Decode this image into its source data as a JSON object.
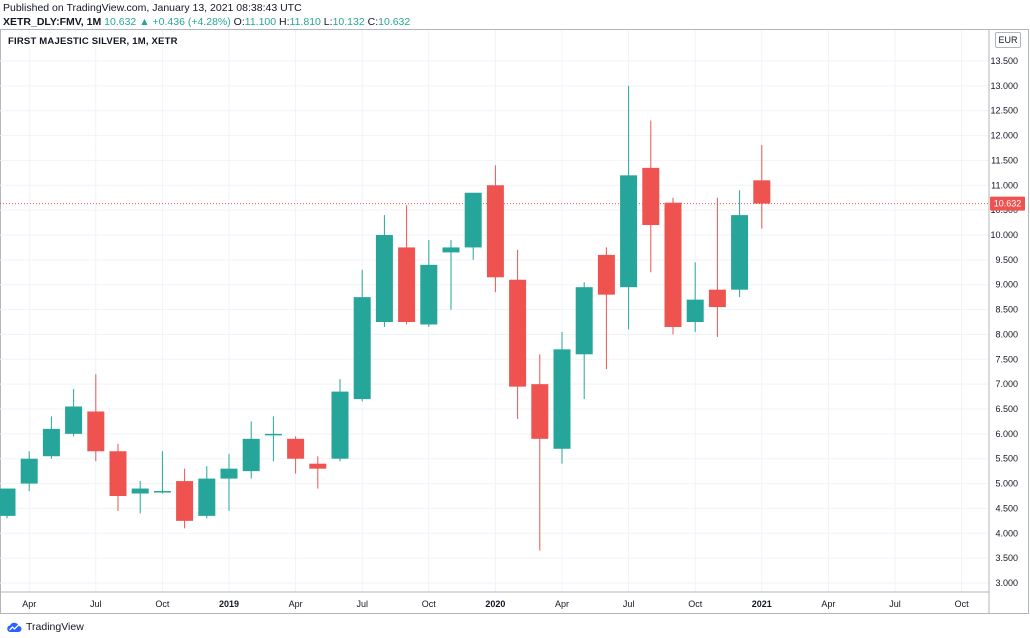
{
  "header": {
    "published": "Published on TradingView.com, January 13, 2021 08:38:43 UTC",
    "symbol": "XETR_DLY:FMV, 1M",
    "last": "10.632",
    "change": "+0.436 (+4.28%)",
    "open_label": "O:",
    "open": "11.100",
    "high_label": "H:",
    "high": "11.810",
    "low_label": "L:",
    "low": "10.132",
    "close_label": "C:",
    "close": "10.632"
  },
  "chart_title": "FIRST MAJESTIC SILVER, 1M, XETR",
  "currency": "EUR",
  "footer": {
    "brand": "TradingView"
  },
  "colors": {
    "up": "#26a69a",
    "down": "#ef5350",
    "grid": "#f0f3fa",
    "price_line": "#ef5350",
    "axis": "#131722"
  },
  "chart_data": {
    "type": "candlestick",
    "title": "FIRST MAJESTIC SILVER, 1M, XETR",
    "ylim": [
      2.75,
      13.75
    ],
    "y_ticks": [
      "3.000",
      "3.500",
      "4.000",
      "4.500",
      "5.000",
      "5.500",
      "6.000",
      "6.500",
      "7.000",
      "7.500",
      "8.000",
      "8.500",
      "9.000",
      "9.500",
      "10.000",
      "10.500",
      "11.000",
      "11.500",
      "12.000",
      "12.500",
      "13.000",
      "13.500"
    ],
    "x_ticks": [
      {
        "i": 1,
        "label": "Apr",
        "bold": false
      },
      {
        "i": 4,
        "label": "Jul",
        "bold": false
      },
      {
        "i": 7,
        "label": "Oct",
        "bold": false
      },
      {
        "i": 10,
        "label": "2019",
        "bold": true
      },
      {
        "i": 13,
        "label": "Apr",
        "bold": false
      },
      {
        "i": 16,
        "label": "Jul",
        "bold": false
      },
      {
        "i": 19,
        "label": "Oct",
        "bold": false
      },
      {
        "i": 22,
        "label": "2020",
        "bold": true
      },
      {
        "i": 25,
        "label": "Apr",
        "bold": false
      },
      {
        "i": 28,
        "label": "Jul",
        "bold": false
      },
      {
        "i": 31,
        "label": "Oct",
        "bold": false
      },
      {
        "i": 34,
        "label": "2021",
        "bold": true
      },
      {
        "i": 37,
        "label": "Apr",
        "bold": false
      },
      {
        "i": 40,
        "label": "Jul",
        "bold": false
      },
      {
        "i": 43,
        "label": "Oct",
        "bold": false
      }
    ],
    "last_price_label": "10.632",
    "last_price": 10.632,
    "candles": [
      {
        "o": 4.35,
        "h": 4.9,
        "l": 4.3,
        "c": 4.9
      },
      {
        "o": 5.0,
        "h": 5.65,
        "l": 4.85,
        "c": 5.5
      },
      {
        "o": 5.55,
        "h": 6.35,
        "l": 5.5,
        "c": 6.1
      },
      {
        "o": 6.0,
        "h": 6.9,
        "l": 5.95,
        "c": 6.55
      },
      {
        "o": 6.45,
        "h": 7.2,
        "l": 5.45,
        "c": 5.65
      },
      {
        "o": 5.65,
        "h": 5.8,
        "l": 4.45,
        "c": 4.75
      },
      {
        "o": 4.8,
        "h": 5.05,
        "l": 4.4,
        "c": 4.9
      },
      {
        "o": 4.82,
        "h": 5.65,
        "l": 4.8,
        "c": 4.85
      },
      {
        "o": 5.05,
        "h": 5.3,
        "l": 4.1,
        "c": 4.25
      },
      {
        "o": 4.35,
        "h": 5.35,
        "l": 4.3,
        "c": 5.1
      },
      {
        "o": 5.1,
        "h": 5.6,
        "l": 4.45,
        "c": 5.3
      },
      {
        "o": 5.25,
        "h": 6.25,
        "l": 5.1,
        "c": 5.9
      },
      {
        "o": 5.98,
        "h": 6.35,
        "l": 5.45,
        "c": 6.0
      },
      {
        "o": 5.9,
        "h": 5.95,
        "l": 5.2,
        "c": 5.5
      },
      {
        "o": 5.4,
        "h": 5.55,
        "l": 4.9,
        "c": 5.3
      },
      {
        "o": 5.5,
        "h": 7.1,
        "l": 5.45,
        "c": 6.85
      },
      {
        "o": 6.7,
        "h": 9.3,
        "l": 6.65,
        "c": 8.75
      },
      {
        "o": 8.25,
        "h": 10.4,
        "l": 8.15,
        "c": 10.0
      },
      {
        "o": 9.75,
        "h": 10.6,
        "l": 8.2,
        "c": 8.25
      },
      {
        "o": 8.2,
        "h": 9.9,
        "l": 8.15,
        "c": 9.4
      },
      {
        "o": 9.65,
        "h": 9.9,
        "l": 8.5,
        "c": 9.75
      },
      {
        "o": 9.75,
        "h": 10.8,
        "l": 9.5,
        "c": 10.85
      },
      {
        "o": 11.0,
        "h": 11.4,
        "l": 8.85,
        "c": 9.15
      },
      {
        "o": 9.1,
        "h": 9.7,
        "l": 6.3,
        "c": 6.95
      },
      {
        "o": 7.0,
        "h": 7.6,
        "l": 3.65,
        "c": 5.9
      },
      {
        "o": 5.7,
        "h": 8.05,
        "l": 5.4,
        "c": 7.7
      },
      {
        "o": 7.6,
        "h": 9.05,
        "l": 6.7,
        "c": 8.95
      },
      {
        "o": 9.6,
        "h": 9.75,
        "l": 7.3,
        "c": 8.8
      },
      {
        "o": 8.95,
        "h": 13.0,
        "l": 8.1,
        "c": 11.2
      },
      {
        "o": 11.35,
        "h": 12.3,
        "l": 9.25,
        "c": 10.2
      },
      {
        "o": 10.65,
        "h": 10.75,
        "l": 8.0,
        "c": 8.15
      },
      {
        "o": 8.25,
        "h": 9.45,
        "l": 8.05,
        "c": 8.7
      },
      {
        "o": 8.9,
        "h": 10.75,
        "l": 7.95,
        "c": 8.55
      },
      {
        "o": 8.9,
        "h": 10.9,
        "l": 8.75,
        "c": 10.4
      },
      {
        "o": 11.1,
        "h": 11.81,
        "l": 10.13,
        "c": 10.632
      }
    ]
  }
}
